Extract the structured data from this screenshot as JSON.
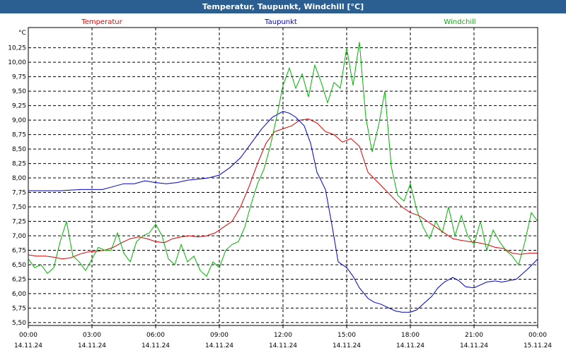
{
  "window": {
    "title": "Temperatur, Taupunkt, Windchill [°C]"
  },
  "chart_data": {
    "type": "line",
    "title": "Temperatur, Taupunkt, Windchill [°C]",
    "ylabel": "°C",
    "ylim": [
      5.45,
      10.6
    ],
    "xlim": [
      0,
      24
    ],
    "grid": true,
    "legend_position": "top",
    "y_ticks": [
      5.5,
      5.75,
      6.0,
      6.25,
      6.5,
      6.75,
      7.0,
      7.25,
      7.5,
      7.75,
      8.0,
      8.25,
      8.5,
      8.75,
      9.0,
      9.25,
      9.5,
      9.75,
      10.0,
      10.25
    ],
    "y_tick_labels": [
      "5,50",
      "5,75",
      "6,00",
      "6,25",
      "6,50",
      "6,75",
      "7,00",
      "7,25",
      "7,50",
      "7,75",
      "8,00",
      "8,25",
      "8,50",
      "8,75",
      "9,00",
      "9,25",
      "9,50",
      "9,75",
      "10,00",
      "10,25"
    ],
    "x_ticks": [
      {
        "time": "00:00",
        "date": "14.11.24"
      },
      {
        "time": "03:00",
        "date": "14.11.24"
      },
      {
        "time": "06:00",
        "date": "14.11.24"
      },
      {
        "time": "09:00",
        "date": "14.11.24"
      },
      {
        "time": "12:00",
        "date": "14.11.24"
      },
      {
        "time": "15:00",
        "date": "14.11.24"
      },
      {
        "time": "18:00",
        "date": "14.11.24"
      },
      {
        "time": "21:00",
        "date": "14.11.24"
      },
      {
        "time": "00:00",
        "date": "15.11.24"
      }
    ],
    "series": [
      {
        "name": "Temperatur",
        "color": "#e00000",
        "x": [
          0,
          0.4,
          0.8,
          1.2,
          1.6,
          2,
          2.4,
          2.8,
          3.2,
          3.6,
          4,
          4.4,
          4.8,
          5.2,
          5.6,
          6,
          6.4,
          6.8,
          7.2,
          7.6,
          8,
          8.4,
          8.8,
          9.2,
          9.6,
          10,
          10.4,
          10.8,
          11.2,
          11.6,
          12,
          12.4,
          12.8,
          13.2,
          13.6,
          14,
          14.4,
          14.8,
          15.2,
          15.6,
          16,
          16.4,
          16.8,
          17.2,
          17.6,
          18,
          18.4,
          18.8,
          19.2,
          19.6,
          20,
          20.4,
          20.8,
          21.2,
          21.6,
          22,
          22.4,
          22.8,
          23.2,
          23.6,
          24
        ],
        "values": [
          6.67,
          6.65,
          6.65,
          6.63,
          6.6,
          6.62,
          6.68,
          6.72,
          6.73,
          6.75,
          6.8,
          6.88,
          6.95,
          6.98,
          6.95,
          6.9,
          6.88,
          6.95,
          6.98,
          7.0,
          6.98,
          7.0,
          7.05,
          7.15,
          7.25,
          7.5,
          7.85,
          8.25,
          8.6,
          8.8,
          8.85,
          8.9,
          9.0,
          9.02,
          8.95,
          8.8,
          8.75,
          8.62,
          8.68,
          8.55,
          8.1,
          7.95,
          7.8,
          7.65,
          7.5,
          7.4,
          7.35,
          7.25,
          7.15,
          7.05,
          6.95,
          6.92,
          6.9,
          6.88,
          6.85,
          6.8,
          6.78,
          6.7,
          6.68,
          6.7,
          6.7
        ]
      },
      {
        "name": "Taupunkt",
        "color": "#0000c8",
        "x": [
          0,
          0.5,
          1,
          1.5,
          2,
          2.5,
          3,
          3.5,
          4,
          4.5,
          5,
          5.5,
          6,
          6.5,
          7,
          7.5,
          8,
          8.5,
          9,
          9.5,
          10,
          10.5,
          11,
          11.5,
          12,
          12.3,
          12.6,
          13,
          13.3,
          13.6,
          14,
          14.3,
          14.6,
          15,
          15.3,
          15.6,
          16,
          16.3,
          16.6,
          17,
          17.3,
          17.6,
          18,
          18.3,
          18.6,
          19,
          19.3,
          19.6,
          20,
          20.3,
          20.6,
          21,
          21.3,
          21.6,
          22,
          22.3,
          22.6,
          23,
          23.3,
          23.6,
          24
        ],
        "values": [
          7.78,
          7.78,
          7.78,
          7.78,
          7.79,
          7.8,
          7.8,
          7.8,
          7.85,
          7.9,
          7.9,
          7.95,
          7.92,
          7.9,
          7.92,
          7.96,
          7.98,
          8.0,
          8.05,
          8.18,
          8.35,
          8.6,
          8.85,
          9.05,
          9.15,
          9.12,
          9.05,
          8.9,
          8.6,
          8.1,
          7.8,
          7.2,
          6.55,
          6.45,
          6.3,
          6.1,
          5.92,
          5.85,
          5.82,
          5.75,
          5.7,
          5.68,
          5.68,
          5.72,
          5.82,
          5.95,
          6.1,
          6.2,
          6.28,
          6.22,
          6.12,
          6.1,
          6.15,
          6.2,
          6.22,
          6.2,
          6.22,
          6.25,
          6.35,
          6.45,
          6.6
        ]
      },
      {
        "name": "Windchill",
        "color": "#00b400",
        "x": [
          0,
          0.3,
          0.6,
          0.9,
          1.2,
          1.5,
          1.8,
          2.1,
          2.4,
          2.7,
          3,
          3.3,
          3.6,
          3.9,
          4.2,
          4.5,
          4.8,
          5.1,
          5.4,
          5.7,
          6,
          6.3,
          6.6,
          6.9,
          7.2,
          7.5,
          7.8,
          8.1,
          8.4,
          8.7,
          9,
          9.3,
          9.6,
          9.9,
          10.2,
          10.5,
          10.8,
          11.1,
          11.4,
          11.7,
          12,
          12.3,
          12.6,
          12.9,
          13.2,
          13.5,
          13.8,
          14.1,
          14.4,
          14.7,
          15,
          15.3,
          15.6,
          15.9,
          16.2,
          16.5,
          16.8,
          17.1,
          17.4,
          17.7,
          18,
          18.3,
          18.6,
          18.9,
          19.2,
          19.5,
          19.8,
          20.1,
          20.4,
          20.7,
          21,
          21.3,
          21.6,
          21.9,
          22.2,
          22.5,
          22.8,
          23.1,
          23.4,
          23.7,
          24
        ],
        "values": [
          6.6,
          6.45,
          6.5,
          6.35,
          6.45,
          6.9,
          7.25,
          6.65,
          6.55,
          6.4,
          6.6,
          6.8,
          6.75,
          6.75,
          7.05,
          6.7,
          6.55,
          6.9,
          7.0,
          7.05,
          7.2,
          7.0,
          6.6,
          6.5,
          6.85,
          6.55,
          6.65,
          6.4,
          6.3,
          6.55,
          6.45,
          6.75,
          6.85,
          6.9,
          7.15,
          7.55,
          7.9,
          8.15,
          8.55,
          9.05,
          9.6,
          9.9,
          9.55,
          9.8,
          9.4,
          9.95,
          9.65,
          9.3,
          9.65,
          9.55,
          10.25,
          9.6,
          10.35,
          9.05,
          8.45,
          8.9,
          9.5,
          8.2,
          7.7,
          7.6,
          7.9,
          7.45,
          7.15,
          6.95,
          7.25,
          7.05,
          7.5,
          7.0,
          7.35,
          7.0,
          6.85,
          7.25,
          6.75,
          7.1,
          6.9,
          6.75,
          6.65,
          6.5,
          6.9,
          7.4,
          7.25
        ]
      }
    ]
  }
}
